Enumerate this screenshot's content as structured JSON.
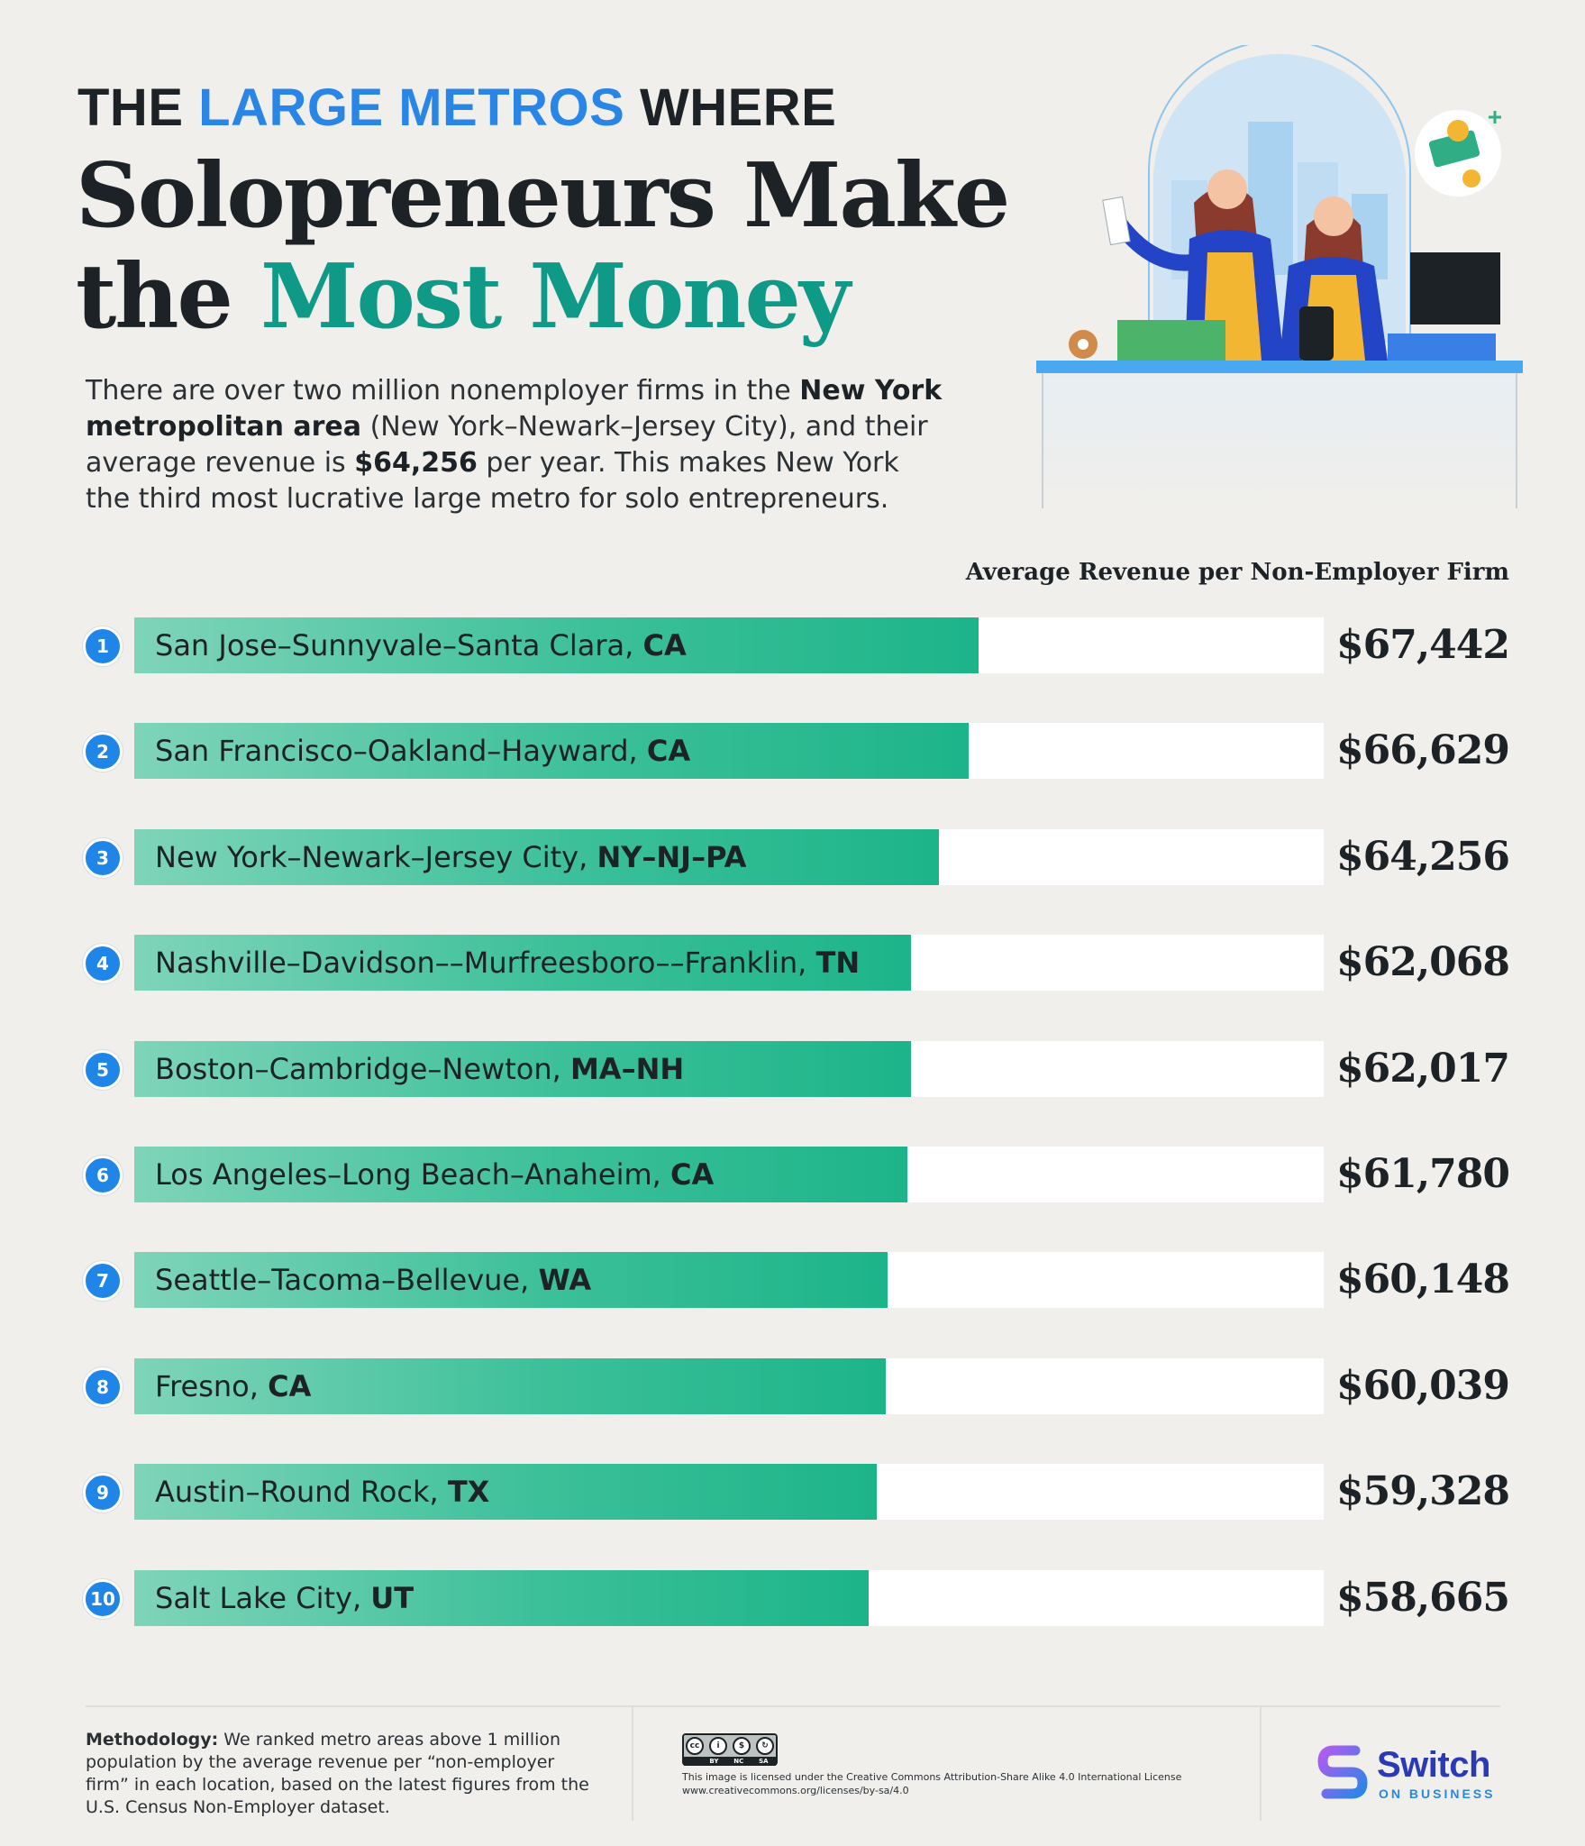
{
  "title": {
    "line1_pre": "THE ",
    "line1_accent": "LARGE METROS",
    "line1_post": " WHERE",
    "line2": "Solopreneurs Make",
    "line3_pre": "the ",
    "line3_accent": "Most Money"
  },
  "intro": {
    "p1": "There are over two million nonemployer firms in the ",
    "b1": "New York metropolitan area",
    "p2": " (New York–Newark–Jersey City), and their average revenue is ",
    "b2": "$64,256",
    "p3": " per year. This makes New York the third most lucrative large metro for solo entrepreneurs."
  },
  "colors": {
    "accent_blue": "#2a86e6",
    "accent_green": "#0f9a88",
    "bar_fill": "#1db489",
    "track": "#ffffff",
    "rank_badge": "#1f86e8"
  },
  "chart_data": {
    "type": "bar",
    "orientation": "horizontal",
    "title": "Average Revenue per Non-Employer Firm",
    "xlim": [
      0,
      95000
    ],
    "ranks": [
      1,
      2,
      3,
      4,
      5,
      6,
      7,
      8,
      9,
      10
    ],
    "categories": [
      "San Jose–Sunnyvale–Santa Clara, CA",
      "San Francisco–Oakland–Hayward, CA",
      "New York–Newark–Jersey City, NY–NJ–PA",
      "Nashville–Davidson––Murfreesboro––Franklin, TN",
      "Boston–Cambridge–Newton, MA–NH",
      "Los Angeles–Long Beach–Anaheim, CA",
      "Seattle–Tacoma–Bellevue, WA",
      "Fresno, CA",
      "Austin–Round Rock, TX",
      "Salt Lake City, UT"
    ],
    "metro_names": [
      "San Jose–Sunnyvale–Santa Clara, ",
      "San Francisco–Oakland–Hayward, ",
      "New York–Newark–Jersey City, ",
      "Nashville–Davidson––Murfreesboro––Franklin, ",
      "Boston–Cambridge–Newton, ",
      "Los Angeles–Long Beach–Anaheim, ",
      "Seattle–Tacoma–Bellevue, ",
      "Fresno, ",
      "Austin–Round Rock, ",
      "Salt Lake City, "
    ],
    "states": [
      "CA",
      "CA",
      "NY–NJ–PA",
      "TN",
      "MA–NH",
      "CA",
      "WA",
      "CA",
      "TX",
      "UT"
    ],
    "values": [
      67442,
      66629,
      64256,
      62068,
      62017,
      61780,
      60148,
      60039,
      59328,
      58665
    ],
    "value_labels": [
      "$67,442",
      "$66,629",
      "$64,256",
      "$62,068",
      "$62,017",
      "$61,780",
      "$60,148",
      "$60,039",
      "$59,328",
      "$58,665"
    ]
  },
  "footer": {
    "methodology_label": "Methodology:",
    "methodology_text": " We ranked metro areas above 1 million population by the average revenue per “non-employer firm” in each location, based on the latest figures from the U.S. Census Non-Employer dataset.",
    "cc_icons": [
      "cc",
      "by",
      "nc",
      "sa"
    ],
    "cc_bottom": [
      "BY",
      "NC",
      "SA"
    ],
    "license_line1": "This image is licensed under the Creative Commons Attribution-Share Alike 4.0 International License",
    "license_line2": "www.creativecommons.org/licenses/by-sa/4.0",
    "brand": "Switch",
    "brand_sub": "ON BUSINESS"
  }
}
